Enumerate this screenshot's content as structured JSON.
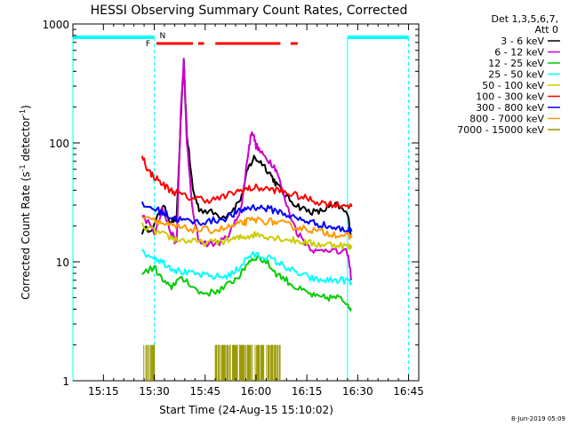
{
  "chart_data": {
    "type": "line",
    "title": "HESSI Observing Summary Count Rates, Corrected",
    "xlabel": "Start Time (24-Aug-15 15:10:02)",
    "ylabel_main": "Corrected Count Rate (s",
    "ylabel_exp1": "-1",
    "ylabel_mid": " detector",
    "ylabel_exp2": "-1",
    "ylabel_end": ")",
    "date_stamp": "8-Jun-2019 05:09",
    "yscale": "log",
    "ylim": [
      1,
      1000
    ],
    "xlim": [
      15.1,
      16.8
    ],
    "y_ticks": [
      {
        "v": 1,
        "label": "1"
      },
      {
        "v": 10,
        "label": "10"
      },
      {
        "v": 100,
        "label": "100"
      },
      {
        "v": 1000,
        "label": "1000"
      }
    ],
    "x_ticks": [
      {
        "v": 15.25,
        "label": "15:15"
      },
      {
        "v": 15.5,
        "label": "15:30"
      },
      {
        "v": 15.75,
        "label": "15:45"
      },
      {
        "v": 16.0,
        "label": "16:00"
      },
      {
        "v": 16.25,
        "label": "16:15"
      },
      {
        "v": 16.5,
        "label": "16:30"
      },
      {
        "v": 16.75,
        "label": "16:45"
      }
    ],
    "legend_header": [
      "Det 1,3,5,6,7,",
      "Att 0"
    ],
    "series": [
      {
        "name": "3 - 6 keV",
        "color": "#000000",
        "points": [
          [
            15.44,
            18
          ],
          [
            15.5,
            20
          ],
          [
            15.54,
            30
          ],
          [
            15.58,
            22
          ],
          [
            15.61,
            23
          ],
          [
            15.63,
            150
          ],
          [
            15.645,
            480
          ],
          [
            15.66,
            120
          ],
          [
            15.69,
            40
          ],
          [
            15.72,
            28
          ],
          [
            15.78,
            26
          ],
          [
            15.84,
            24
          ],
          [
            15.89,
            28
          ],
          [
            15.93,
            35
          ],
          [
            15.96,
            60
          ],
          [
            15.99,
            75
          ],
          [
            16.03,
            68
          ],
          [
            16.07,
            55
          ],
          [
            16.1,
            45
          ],
          [
            16.15,
            35
          ],
          [
            16.2,
            30
          ],
          [
            16.25,
            27
          ],
          [
            16.3,
            26
          ],
          [
            16.35,
            28
          ],
          [
            16.4,
            30
          ],
          [
            16.45,
            25
          ],
          [
            16.47,
            16
          ]
        ]
      },
      {
        "name": "6 - 12 keV",
        "color": "#cc00cc",
        "points": [
          [
            15.44,
            25
          ],
          [
            15.5,
            18
          ],
          [
            15.54,
            28
          ],
          [
            15.58,
            18
          ],
          [
            15.61,
            14
          ],
          [
            15.63,
            180
          ],
          [
            15.645,
            480
          ],
          [
            15.66,
            100
          ],
          [
            15.69,
            25
          ],
          [
            15.72,
            15
          ],
          [
            15.78,
            14
          ],
          [
            15.84,
            15
          ],
          [
            15.89,
            20
          ],
          [
            15.93,
            30
          ],
          [
            15.96,
            80
          ],
          [
            15.98,
            130
          ],
          [
            16.0,
            95
          ],
          [
            16.03,
            80
          ],
          [
            16.07,
            70
          ],
          [
            16.1,
            60
          ],
          [
            16.15,
            30
          ],
          [
            16.2,
            18
          ],
          [
            16.25,
            14
          ],
          [
            16.3,
            12
          ],
          [
            16.35,
            13
          ],
          [
            16.4,
            12
          ],
          [
            16.45,
            12
          ],
          [
            16.47,
            7
          ]
        ]
      },
      {
        "name": "12 - 25 keV",
        "color": "#00cc00",
        "points": [
          [
            15.44,
            8
          ],
          [
            15.5,
            9
          ],
          [
            15.54,
            7
          ],
          [
            15.58,
            6
          ],
          [
            15.61,
            7
          ],
          [
            15.66,
            7
          ],
          [
            15.72,
            5.5
          ],
          [
            15.78,
            5.5
          ],
          [
            15.84,
            6
          ],
          [
            15.89,
            7
          ],
          [
            15.93,
            8
          ],
          [
            15.96,
            10
          ],
          [
            16.0,
            11
          ],
          [
            16.05,
            10
          ],
          [
            16.1,
            8
          ],
          [
            16.15,
            7
          ],
          [
            16.2,
            6
          ],
          [
            16.25,
            5.5
          ],
          [
            16.3,
            5
          ],
          [
            16.35,
            5
          ],
          [
            16.4,
            5
          ],
          [
            16.45,
            4.5
          ],
          [
            16.47,
            4
          ]
        ]
      },
      {
        "name": "25 - 50 keV",
        "color": "#00ffff",
        "points": [
          [
            15.44,
            12
          ],
          [
            15.5,
            11
          ],
          [
            15.54,
            10
          ],
          [
            15.58,
            9
          ],
          [
            15.61,
            8.5
          ],
          [
            15.66,
            8
          ],
          [
            15.72,
            7.8
          ],
          [
            15.78,
            7.5
          ],
          [
            15.84,
            7.5
          ],
          [
            15.89,
            8
          ],
          [
            15.93,
            9.5
          ],
          [
            15.96,
            11
          ],
          [
            16.0,
            11.5
          ],
          [
            16.05,
            11
          ],
          [
            16.1,
            10
          ],
          [
            16.15,
            9
          ],
          [
            16.2,
            8
          ],
          [
            16.25,
            7.5
          ],
          [
            16.3,
            7
          ],
          [
            16.35,
            7
          ],
          [
            16.4,
            7
          ],
          [
            16.45,
            7
          ],
          [
            16.47,
            6.5
          ]
        ]
      },
      {
        "name": "50 - 100 keV",
        "color": "#cccc00",
        "points": [
          [
            15.44,
            20
          ],
          [
            15.5,
            18
          ],
          [
            15.54,
            17
          ],
          [
            15.58,
            16
          ],
          [
            15.61,
            15.5
          ],
          [
            15.66,
            15
          ],
          [
            15.72,
            14.5
          ],
          [
            15.78,
            14.5
          ],
          [
            15.84,
            15
          ],
          [
            15.89,
            15.5
          ],
          [
            15.93,
            16
          ],
          [
            15.96,
            16.5
          ],
          [
            16.0,
            17
          ],
          [
            16.05,
            16.5
          ],
          [
            16.1,
            16
          ],
          [
            16.15,
            15.5
          ],
          [
            16.2,
            15
          ],
          [
            16.25,
            14.5
          ],
          [
            16.3,
            14
          ],
          [
            16.35,
            14
          ],
          [
            16.4,
            14
          ],
          [
            16.45,
            13.5
          ],
          [
            16.47,
            13
          ]
        ]
      },
      {
        "name": "100 - 300 keV",
        "color": "#ff0000",
        "points": [
          [
            15.44,
            80
          ],
          [
            15.47,
            58
          ],
          [
            15.5,
            52
          ],
          [
            15.54,
            45
          ],
          [
            15.58,
            40
          ],
          [
            15.61,
            38
          ],
          [
            15.66,
            35
          ],
          [
            15.72,
            34
          ],
          [
            15.78,
            33
          ],
          [
            15.84,
            35
          ],
          [
            15.89,
            38
          ],
          [
            15.93,
            40
          ],
          [
            15.96,
            41
          ],
          [
            16.0,
            42
          ],
          [
            16.05,
            41
          ],
          [
            16.1,
            40
          ],
          [
            16.15,
            38
          ],
          [
            16.2,
            36
          ],
          [
            16.25,
            34
          ],
          [
            16.3,
            32
          ],
          [
            16.35,
            31
          ],
          [
            16.4,
            30
          ],
          [
            16.45,
            30
          ],
          [
            16.47,
            29
          ]
        ]
      },
      {
        "name": "300 - 800 keV",
        "color": "#0000ff",
        "points": [
          [
            15.44,
            30
          ],
          [
            15.5,
            28
          ],
          [
            15.54,
            26
          ],
          [
            15.58,
            24
          ],
          [
            15.61,
            23
          ],
          [
            15.66,
            22
          ],
          [
            15.72,
            21.5
          ],
          [
            15.78,
            22
          ],
          [
            15.84,
            23
          ],
          [
            15.89,
            25
          ],
          [
            15.93,
            27
          ],
          [
            15.96,
            28.5
          ],
          [
            16.0,
            29
          ],
          [
            16.05,
            28
          ],
          [
            16.1,
            27
          ],
          [
            16.15,
            25
          ],
          [
            16.2,
            23
          ],
          [
            16.25,
            22
          ],
          [
            16.3,
            21
          ],
          [
            16.35,
            20
          ],
          [
            16.4,
            19
          ],
          [
            16.45,
            18.5
          ],
          [
            16.47,
            18
          ]
        ]
      },
      {
        "name": "800 - 7000 keV",
        "color": "#ff9900",
        "points": [
          [
            15.44,
            25
          ],
          [
            15.5,
            23
          ],
          [
            15.54,
            21
          ],
          [
            15.58,
            20
          ],
          [
            15.61,
            19.5
          ],
          [
            15.66,
            19
          ],
          [
            15.72,
            18.5
          ],
          [
            15.78,
            18.5
          ],
          [
            15.84,
            19
          ],
          [
            15.89,
            20
          ],
          [
            15.93,
            21
          ],
          [
            15.96,
            22
          ],
          [
            16.0,
            22.5
          ],
          [
            16.05,
            22
          ],
          [
            16.1,
            21.5
          ],
          [
            16.15,
            20.5
          ],
          [
            16.2,
            19.5
          ],
          [
            16.25,
            19
          ],
          [
            16.3,
            18
          ],
          [
            16.35,
            17.5
          ],
          [
            16.4,
            17
          ],
          [
            16.45,
            16.5
          ],
          [
            16.47,
            16
          ]
        ]
      },
      {
        "name": "7000 - 15000 keV",
        "color": "#999900",
        "points": []
      }
    ],
    "legend_order_colors": [
      "#000000",
      "#cc00cc",
      "#00cc00",
      "#00ffff",
      "#cccc00",
      "#ff0000",
      "#0000ff",
      "#ff9900",
      "#999900"
    ],
    "bursts_7000": {
      "spans": [
        [
          15.445,
          15.505
        ],
        [
          15.8,
          16.12
        ]
      ],
      "level": 2
    },
    "flag_labels": {
      "F": "F",
      "N": "N"
    },
    "night_bars": [
      [
        15.1,
        15.5
      ],
      [
        16.45,
        16.75
      ]
    ],
    "flare_dashes": [
      [
        15.51,
        15.69
      ],
      [
        15.715,
        15.745
      ],
      [
        15.8,
        16.12
      ],
      [
        16.17,
        16.205
      ]
    ],
    "vlines_solid": [
      15.1,
      16.45
    ],
    "vlines_dashed": [
      15.5,
      16.75
    ]
  }
}
